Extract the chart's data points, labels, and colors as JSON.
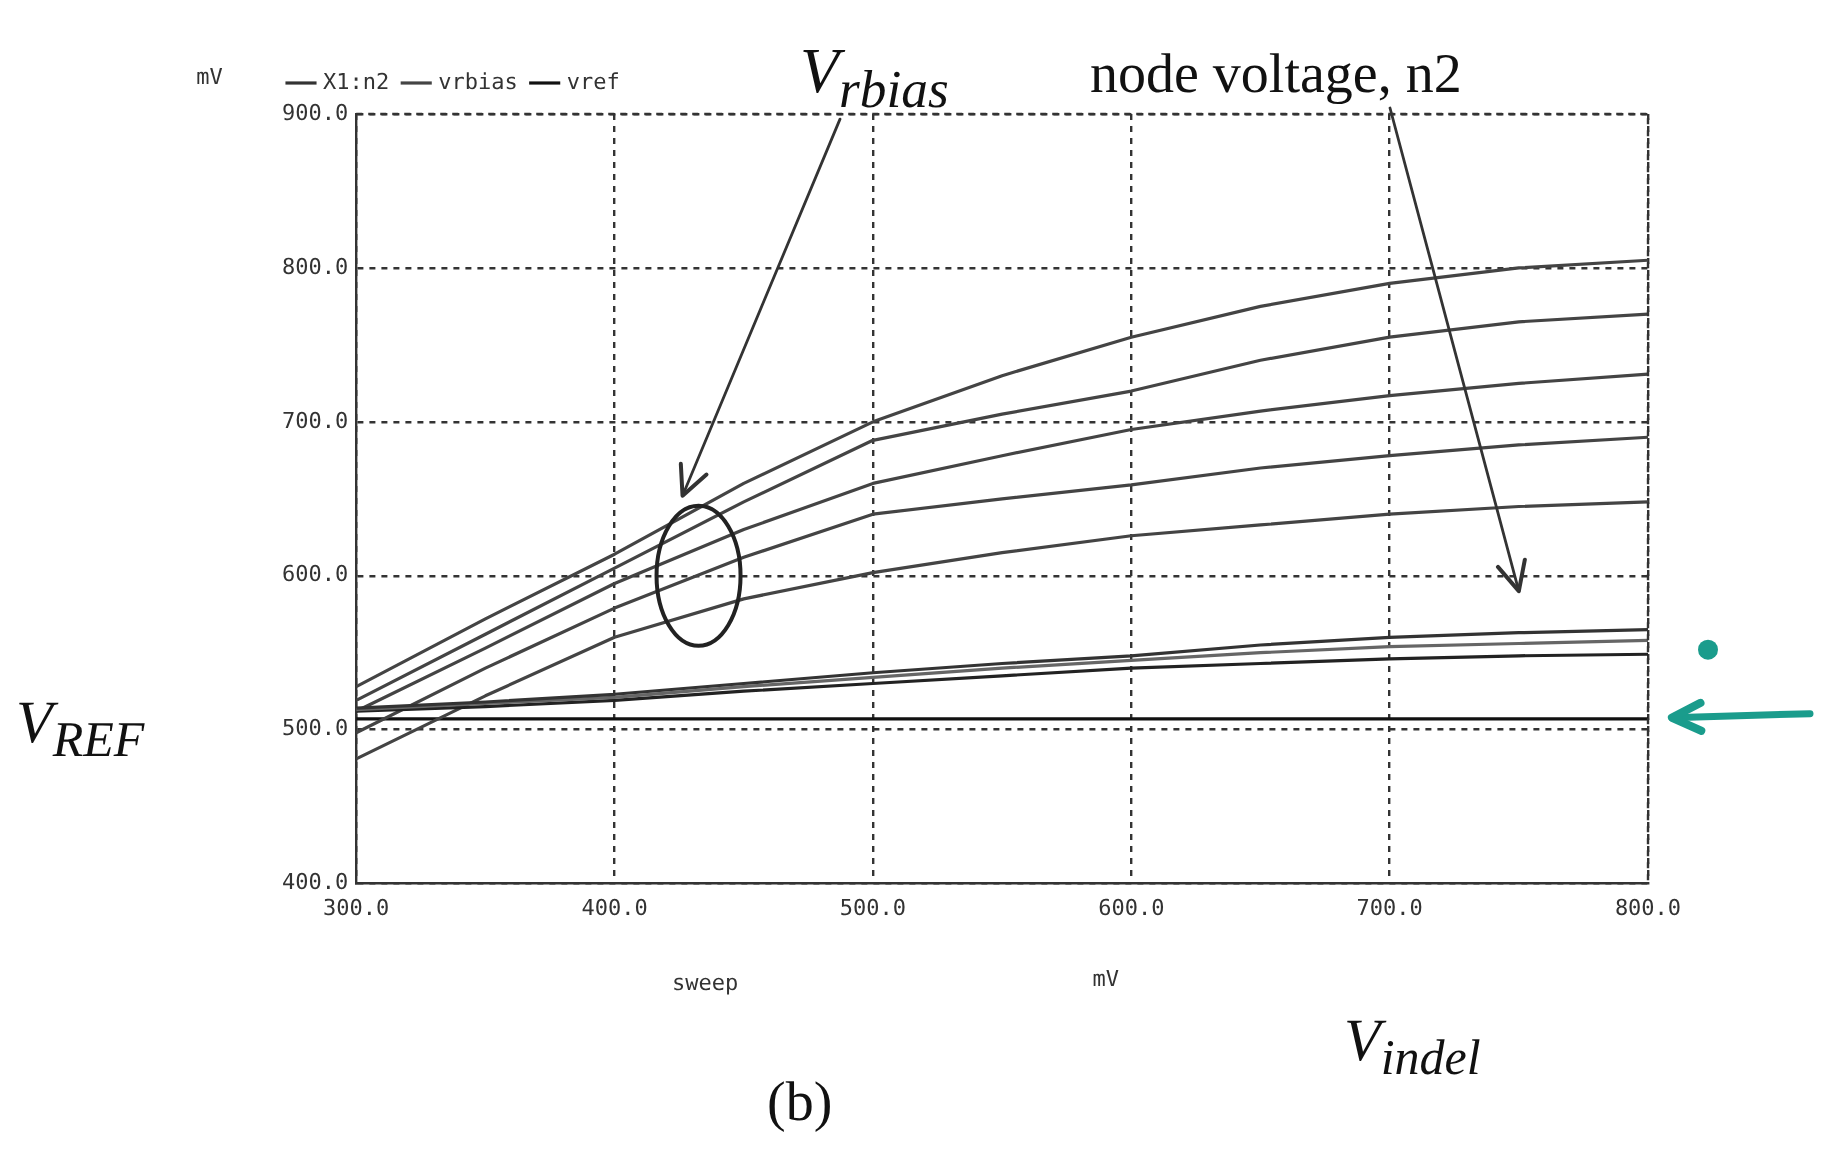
{
  "chart_data": {
    "type": "line",
    "ylabel": "mV",
    "xlabel": "sweep",
    "annotations": [
      "V$_{rbias}$",
      "node voltage, n2",
      "mV",
      "V$_{REF}$",
      "V$_{indel}$",
      "(b)"
    ],
    "x": [
      300,
      350,
      400,
      450,
      500,
      550,
      600,
      650,
      700,
      750,
      800
    ],
    "series": [
      {
        "name": "X1:n2",
        "color": "#333333",
        "values": [
          514,
          518,
          523,
          530,
          537,
          543,
          548,
          555,
          560,
          563,
          565
        ]
      },
      {
        "color": "#666666",
        "values": [
          513,
          517,
          521,
          528,
          534,
          540,
          545,
          550,
          554,
          556,
          558
        ]
      },
      {
        "color": "#222222",
        "values": [
          512,
          515,
          519,
          525,
          530,
          535,
          540,
          543,
          546,
          548,
          549
        ]
      },
      {
        "name": "vrbias",
        "color": "#444444",
        "values": [
          528,
          572,
          614,
          660,
          700,
          730,
          755,
          775,
          790,
          800,
          805
        ]
      },
      {
        "color": "#444444",
        "values": [
          519,
          562,
          605,
          648,
          688,
          705,
          720,
          740,
          755,
          765,
          770
        ]
      },
      {
        "color": "#444444",
        "values": [
          512,
          553,
          595,
          630,
          660,
          678,
          695,
          707,
          717,
          725,
          731
        ]
      },
      {
        "color": "#444444",
        "values": [
          498,
          540,
          579,
          612,
          640,
          650,
          659,
          670,
          678,
          685,
          690
        ]
      },
      {
        "color": "#444444",
        "values": [
          481,
          522,
          560,
          585,
          602,
          615,
          626,
          633,
          640,
          645,
          648
        ]
      },
      {
        "name": "vref",
        "color": "#111111",
        "values": [
          507,
          507,
          507,
          507,
          507,
          507,
          507,
          507,
          507,
          507,
          507
        ]
      }
    ],
    "xlim": [
      300,
      800
    ],
    "xticks": [
      {
        "value": 300,
        "label": "300.0"
      },
      {
        "value": 400,
        "label": "400.0"
      },
      {
        "value": 500,
        "label": "500.0"
      },
      {
        "value": 600,
        "label": "600.0"
      },
      {
        "value": 700,
        "label": "700.0"
      },
      {
        "value": 800,
        "label": "800.0"
      }
    ],
    "ylim": [
      400,
      900
    ],
    "yticks": [
      {
        "value": 400,
        "label": "400.0"
      },
      {
        "value": 500,
        "label": "500.0"
      },
      {
        "value": 600,
        "label": "600.0"
      },
      {
        "value": 700,
        "label": "700.0"
      },
      {
        "value": 800,
        "label": "800.0"
      },
      {
        "value": 900,
        "label": "900.0"
      }
    ],
    "grid": true,
    "legend": "top left",
    "marker": "none"
  }
}
